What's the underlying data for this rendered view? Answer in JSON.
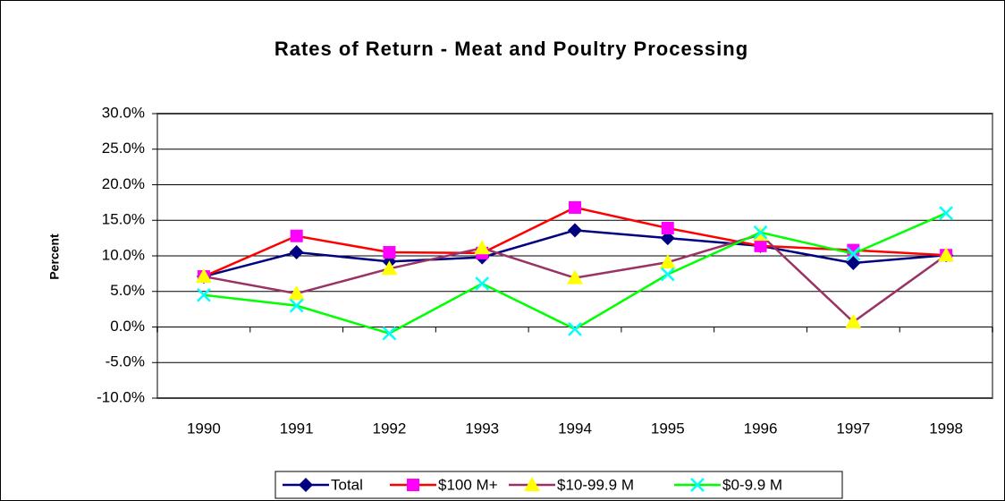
{
  "chart_data": {
    "type": "line",
    "title": "Rates of Return - Meat and Poultry Processing",
    "y_label": "Percent",
    "categories": [
      "1990",
      "1991",
      "1992",
      "1993",
      "1994",
      "1995",
      "1996",
      "1997",
      "1998"
    ],
    "series": [
      {
        "name": "Total",
        "color": "#000080",
        "marker_color": "#000080",
        "marker": "diamond",
        "values": [
          7.1,
          10.5,
          9.2,
          9.8,
          13.6,
          12.5,
          11.4,
          9.0,
          10.1
        ]
      },
      {
        "name": "$100 M+",
        "color": "#ff0000",
        "marker_color": "#ff00ff",
        "marker": "square",
        "values": [
          7.1,
          12.8,
          10.5,
          10.4,
          16.8,
          13.9,
          11.4,
          10.8,
          10.1
        ]
      },
      {
        "name": "$10-99.9 M",
        "color": "#993366",
        "marker_color": "#ffff00",
        "marker": "triangle",
        "values": [
          7.1,
          4.7,
          8.2,
          11.1,
          6.9,
          9.1,
          13.0,
          0.7,
          10.1
        ]
      },
      {
        "name": "$0-9.9 M",
        "color": "#00ff00",
        "marker_color": "#00ffff",
        "marker": "x",
        "values": [
          4.5,
          3.0,
          -0.9,
          6.1,
          -0.3,
          7.4,
          13.3,
          10.3,
          16.0
        ]
      }
    ],
    "ylim": [
      -10,
      30
    ],
    "yticks": [
      {
        "value": -10,
        "label": "-10.0%"
      },
      {
        "value": -5,
        "label": "-5.0%"
      },
      {
        "value": 0,
        "label": "0.0%"
      },
      {
        "value": 5,
        "label": "5.0%"
      },
      {
        "value": 10,
        "label": "10.0%"
      },
      {
        "value": 15,
        "label": "15.0%"
      },
      {
        "value": 20,
        "label": "20.0%"
      },
      {
        "value": 25,
        "label": "25.0%"
      },
      {
        "value": 30,
        "label": "30.0%"
      }
    ],
    "grid": true,
    "legend": "bottom"
  }
}
